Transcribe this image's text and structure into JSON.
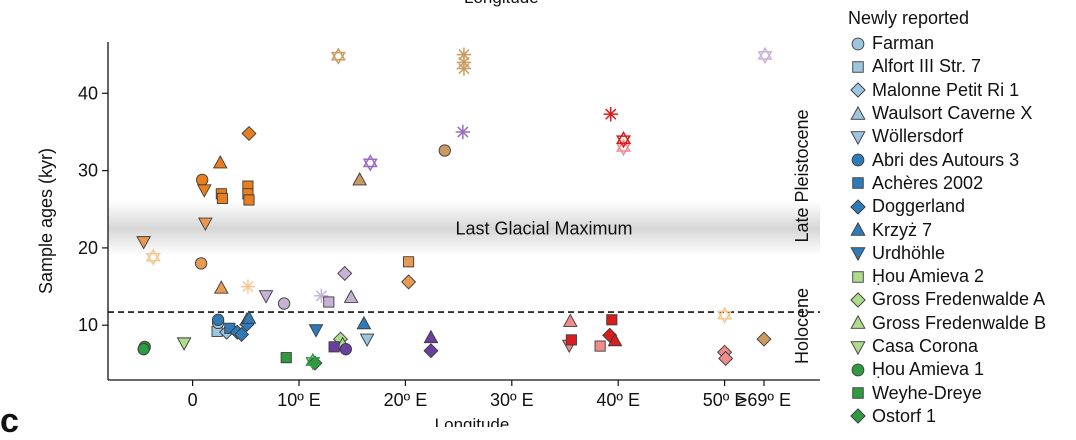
{
  "chart_data": {
    "type": "scatter",
    "title": "",
    "top_label": "Longitude",
    "xlabel": "Longitude",
    "ylabel": "Sample ages (kyr)",
    "panel_letter": "c",
    "xlim": [
      -8,
      58
    ],
    "ylim": [
      5,
      43
    ],
    "yticks": [
      10,
      20,
      30,
      40
    ],
    "xticks": [
      {
        "v": 0,
        "label": "0"
      },
      {
        "v": 10,
        "label": "10º E"
      },
      {
        "v": 20,
        "label": "20º E"
      },
      {
        "v": 30,
        "label": "30º E"
      },
      {
        "v": 40,
        "label": "40º E"
      },
      {
        "v": 50,
        "label": "50º E"
      },
      {
        "v": 53.7,
        "label": ">69º E"
      }
    ],
    "grid": false,
    "band": {
      "label": "Last Glacial Maximum",
      "y_range": [
        19,
        26
      ]
    },
    "boundary": {
      "y": 11.7
    },
    "period_labels": [
      {
        "label": "Late Pleistocene",
        "y_center": 30
      },
      {
        "label": "Holocene",
        "y_center": 6
      }
    ],
    "legend": {
      "position": "right",
      "title": "Newly reported",
      "entries": [
        {
          "label": "Farman",
          "marker": "circle",
          "color": "#9cc5e0"
        },
        {
          "label": "Alfort III Str. 7",
          "marker": "square",
          "color": "#9cc5e0"
        },
        {
          "label": "Malonne Petit Ri 1",
          "marker": "diamond",
          "color": "#9cc5e0"
        },
        {
          "label": "Waulsort Caverne X",
          "marker": "triangle",
          "color": "#9cc5e0"
        },
        {
          "label": "Wöllersdorf",
          "marker": "triangle-down",
          "color": "#9cc5e0"
        },
        {
          "label": "Abri des Autours 3",
          "marker": "circle",
          "color": "#2f7bb8"
        },
        {
          "label": "Achères 2002",
          "marker": "square",
          "color": "#2f7bb8"
        },
        {
          "label": "Doggerland",
          "marker": "diamond",
          "color": "#2f7bb8"
        },
        {
          "label": "Krzyż 7",
          "marker": "triangle",
          "color": "#2f7bb8"
        },
        {
          "label": "Urdhöhle",
          "marker": "triangle-down",
          "color": "#2f7bb8"
        },
        {
          "label": "Ḥou Amieva 2",
          "marker": "square",
          "color": "#aedb8e"
        },
        {
          "label": "Gross Fredenwalde A",
          "marker": "diamond",
          "color": "#aedb8e"
        },
        {
          "label": "Gross Fredenwalde B",
          "marker": "triangle",
          "color": "#aedb8e"
        },
        {
          "label": "Casa Corona",
          "marker": "triangle-down",
          "color": "#aedb8e"
        },
        {
          "label": "Ḥou Amieva 1",
          "marker": "circle",
          "color": "#2f9a40"
        },
        {
          "label": "Weyhe-Dreye",
          "marker": "square",
          "color": "#2f9a40"
        },
        {
          "label": "Ostorf 1",
          "marker": "diamond",
          "color": "#2f9a40"
        }
      ]
    },
    "series": [
      {
        "color": "#2f9a40",
        "points": [
          {
            "x": -4.5,
            "y": 7.2,
            "m": "circle"
          },
          {
            "x": -4.6,
            "y": 6.9,
            "m": "circle"
          },
          {
            "x": 8.8,
            "y": 5.8,
            "m": "square"
          },
          {
            "x": 11.5,
            "y": 5.1,
            "m": "diamond"
          },
          {
            "x": 11.3,
            "y": 5.3,
            "m": "star6"
          }
        ]
      },
      {
        "color": "#aedb8e",
        "points": [
          {
            "x": -0.8,
            "y": 7.7,
            "m": "triangle-down"
          },
          {
            "x": 13.9,
            "y": 8.2,
            "m": "diamond"
          },
          {
            "x": 14.1,
            "y": 7.5,
            "m": "triangle"
          }
        ]
      },
      {
        "color": "#9cc5e0",
        "points": [
          {
            "x": 2.3,
            "y": 9.2,
            "m": "square"
          },
          {
            "x": 2.4,
            "y": 10.3,
            "m": "circle"
          },
          {
            "x": 3.2,
            "y": 9.1,
            "m": "diamond"
          },
          {
            "x": 5.1,
            "y": 10.7,
            "m": "triangle"
          },
          {
            "x": 16.4,
            "y": 8.2,
            "m": "triangle-down"
          }
        ]
      },
      {
        "color": "#2f7bb8",
        "points": [
          {
            "x": 2.4,
            "y": 10.7,
            "m": "circle"
          },
          {
            "x": 3.5,
            "y": 9.6,
            "m": "square"
          },
          {
            "x": 4.2,
            "y": 9.1,
            "m": "diamond"
          },
          {
            "x": 4.6,
            "y": 8.8,
            "m": "diamond"
          },
          {
            "x": 5.1,
            "y": 10.1,
            "m": "diamond"
          },
          {
            "x": 5.3,
            "y": 10.9,
            "m": "triangle"
          },
          {
            "x": 11.6,
            "y": 9.4,
            "m": "triangle-down"
          },
          {
            "x": 16.1,
            "y": 10.2,
            "m": "triangle"
          }
        ]
      },
      {
        "color": "#f4c791",
        "points": [
          {
            "x": -3.7,
            "y": 18.8,
            "m": "star6"
          },
          {
            "x": 5.2,
            "y": 15.0,
            "m": "star"
          },
          {
            "x": 50.0,
            "y": 11.3,
            "m": "star6"
          }
        ]
      },
      {
        "color": "#e89a52",
        "points": [
          {
            "x": -4.6,
            "y": 20.8,
            "m": "triangle-down"
          },
          {
            "x": 0.8,
            "y": 18.0,
            "m": "circle"
          },
          {
            "x": 1.2,
            "y": 23.2,
            "m": "triangle-down"
          },
          {
            "x": 2.7,
            "y": 14.8,
            "m": "triangle"
          },
          {
            "x": 20.3,
            "y": 18.2,
            "m": "square"
          },
          {
            "x": 20.3,
            "y": 15.6,
            "m": "diamond"
          }
        ]
      },
      {
        "color": "#e87e1d",
        "points": [
          {
            "x": 0.9,
            "y": 28.8,
            "m": "circle"
          },
          {
            "x": 1.1,
            "y": 27.5,
            "m": "triangle-down"
          },
          {
            "x": 2.6,
            "y": 31.0,
            "m": "triangle"
          },
          {
            "x": 2.7,
            "y": 27.0,
            "m": "square"
          },
          {
            "x": 2.8,
            "y": 26.4,
            "m": "square"
          },
          {
            "x": 5.2,
            "y": 28.0,
            "m": "square"
          },
          {
            "x": 5.2,
            "y": 27.0,
            "m": "square"
          },
          {
            "x": 5.3,
            "y": 26.2,
            "m": "square"
          },
          {
            "x": 5.3,
            "y": 34.8,
            "m": "diamond"
          }
        ]
      },
      {
        "color": "#c99b61",
        "points": [
          {
            "x": 13.7,
            "y": 44.8,
            "m": "star6"
          },
          {
            "x": 15.7,
            "y": 28.8,
            "m": "triangle"
          },
          {
            "x": 23.7,
            "y": 32.6,
            "m": "circle"
          },
          {
            "x": 25.5,
            "y": 45.0,
            "m": "star"
          },
          {
            "x": 25.5,
            "y": 44.0,
            "m": "star"
          },
          {
            "x": 25.5,
            "y": 43.2,
            "m": "star"
          },
          {
            "x": 53.7,
            "y": 8.2,
            "m": "diamond"
          }
        ]
      },
      {
        "color": "#c6b2d6",
        "points": [
          {
            "x": 6.9,
            "y": 13.8,
            "m": "triangle-down"
          },
          {
            "x": 8.6,
            "y": 12.8,
            "m": "circle"
          },
          {
            "x": 12.1,
            "y": 13.8,
            "m": "star"
          },
          {
            "x": 12.8,
            "y": 13.0,
            "m": "square"
          },
          {
            "x": 14.9,
            "y": 13.6,
            "m": "triangle"
          },
          {
            "x": 14.3,
            "y": 16.7,
            "m": "diamond"
          },
          {
            "x": 53.8,
            "y": 44.9,
            "m": "star6"
          }
        ]
      },
      {
        "color": "#6b3fa0",
        "points": [
          {
            "x": 13.3,
            "y": 7.2,
            "m": "square"
          },
          {
            "x": 14.4,
            "y": 6.9,
            "m": "circle"
          },
          {
            "x": 22.4,
            "y": 8.4,
            "m": "triangle"
          },
          {
            "x": 22.4,
            "y": 6.7,
            "m": "diamond"
          }
        ]
      },
      {
        "color": "#9a6cc0",
        "points": [
          {
            "x": 16.7,
            "y": 31.0,
            "m": "star6"
          },
          {
            "x": 25.4,
            "y": 35.0,
            "m": "star"
          }
        ]
      },
      {
        "color": "#ee8c8c",
        "points": [
          {
            "x": 35.5,
            "y": 10.5,
            "m": "triangle"
          },
          {
            "x": 35.4,
            "y": 7.4,
            "m": "triangle-down"
          },
          {
            "x": 38.3,
            "y": 7.3,
            "m": "square"
          },
          {
            "x": 50.0,
            "y": 6.5,
            "m": "diamond"
          },
          {
            "x": 50.1,
            "y": 5.7,
            "m": "diamond"
          },
          {
            "x": 40.5,
            "y": 33.0,
            "m": "star6"
          }
        ]
      },
      {
        "color": "#d81e1e",
        "points": [
          {
            "x": 35.6,
            "y": 8.1,
            "m": "square"
          },
          {
            "x": 39.4,
            "y": 10.7,
            "m": "square"
          },
          {
            "x": 39.2,
            "y": 8.7,
            "m": "diamond"
          },
          {
            "x": 39.7,
            "y": 8.0,
            "m": "triangle"
          },
          {
            "x": 39.3,
            "y": 37.3,
            "m": "star"
          },
          {
            "x": 40.5,
            "y": 34.0,
            "m": "star6"
          }
        ]
      }
    ]
  }
}
